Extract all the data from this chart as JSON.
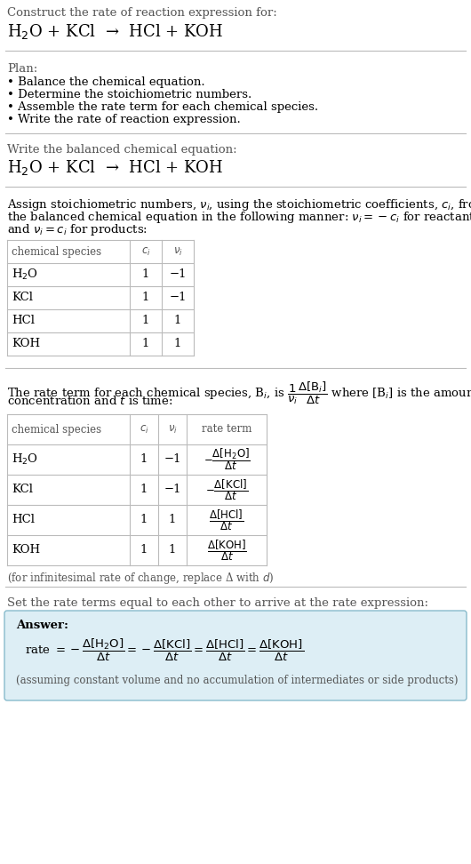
{
  "bg_color": "#ffffff",
  "title_line1": "Construct the rate of reaction expression for:",
  "title_line2": "H$_2$O + KCl  →  HCl + KOH",
  "plan_header": "Plan:",
  "plan_items": [
    "• Balance the chemical equation.",
    "• Determine the stoichiometric numbers.",
    "• Assemble the rate term for each chemical species.",
    "• Write the rate of reaction expression."
  ],
  "balanced_header": "Write the balanced chemical equation:",
  "balanced_eq": "H$_2$O + KCl  →  HCl + KOH",
  "stoich_lines": [
    "Assign stoichiometric numbers, $\\nu_i$, using the stoichiometric coefficients, $c_i$, from",
    "the balanced chemical equation in the following manner: $\\nu_i = -c_i$ for reactants",
    "and $\\nu_i = c_i$ for products:"
  ],
  "table1_cols": [
    "chemical species",
    "$c_i$",
    "$\\nu_i$"
  ],
  "table1_rows": [
    [
      "H$_2$O",
      "1",
      "−1"
    ],
    [
      "KCl",
      "1",
      "−1"
    ],
    [
      "HCl",
      "1",
      "1"
    ],
    [
      "KOH",
      "1",
      "1"
    ]
  ],
  "rate_lines": [
    "The rate term for each chemical species, B$_i$, is $\\dfrac{1}{\\nu_i}\\dfrac{\\Delta[\\mathrm{B}_i]}{\\Delta t}$ where [B$_i$] is the amount",
    "concentration and $t$ is time:"
  ],
  "table2_cols": [
    "chemical species",
    "$c_i$",
    "$\\nu_i$",
    "rate term"
  ],
  "table2_rows": [
    [
      "H$_2$O",
      "1",
      "−1",
      "$-\\dfrac{\\Delta[\\mathrm{H_2O}]}{\\Delta t}$"
    ],
    [
      "KCl",
      "1",
      "−1",
      "$-\\dfrac{\\Delta[\\mathrm{KCl}]}{\\Delta t}$"
    ],
    [
      "HCl",
      "1",
      "1",
      "$\\dfrac{\\Delta[\\mathrm{HCl}]}{\\Delta t}$"
    ],
    [
      "KOH",
      "1",
      "1",
      "$\\dfrac{\\Delta[\\mathrm{KOH}]}{\\Delta t}$"
    ]
  ],
  "infinitesimal_note": "(for infinitesimal rate of change, replace Δ with $d$)",
  "set_rate_header": "Set the rate terms equal to each other to arrive at the rate expression:",
  "answer_box_color": "#ddeef5",
  "answer_border_color": "#88bbcc",
  "answer_label": "Answer:",
  "rate_expr": "rate $= -\\dfrac{\\Delta[\\mathrm{H_2O}]}{\\Delta t} = -\\dfrac{\\Delta[\\mathrm{KCl}]}{\\Delta t} = \\dfrac{\\Delta[\\mathrm{HCl}]}{\\Delta t} = \\dfrac{\\Delta[\\mathrm{KOH}]}{\\Delta t}$",
  "assumption_note": "(assuming constant volume and no accumulation of intermediates or side products)"
}
